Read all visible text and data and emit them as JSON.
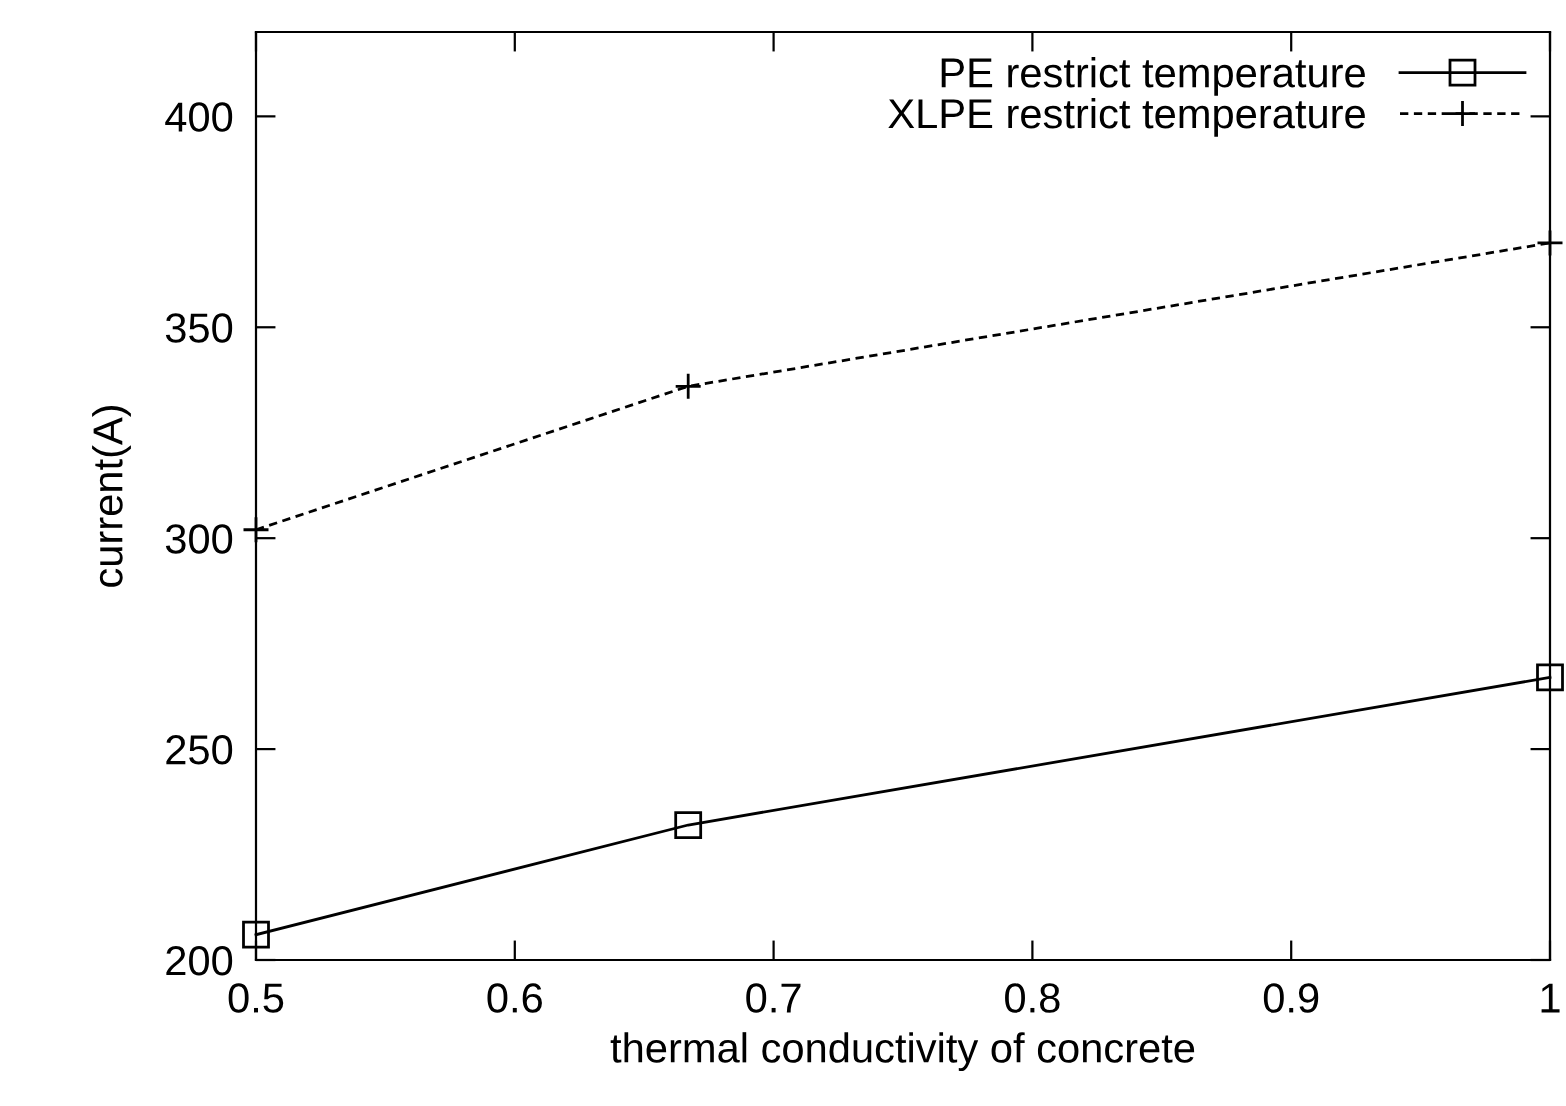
{
  "chart_data": {
    "type": "line",
    "xlabel": "thermal conductivity of concrete",
    "ylabel": "current(A)",
    "xlim": [
      0.5,
      1
    ],
    "xticks": [
      0.5,
      0.6,
      0.7,
      0.8,
      0.9,
      1
    ],
    "ylim": [
      200,
      420
    ],
    "yticks": [
      200,
      250,
      300,
      350,
      400
    ],
    "grid": false,
    "legend": "top right",
    "tick_labels": true,
    "series": [
      {
        "name": "PE restrict temperature",
        "color": "#000000",
        "x": [
          0.5,
          0.667,
          1
        ],
        "values": [
          206,
          232,
          267
        ],
        "marker": "square",
        "line_style": "solid"
      },
      {
        "name": "XLPE restrict temperature",
        "color": "#000000",
        "x": [
          0.5,
          0.667,
          1
        ],
        "values": [
          302,
          336,
          370
        ],
        "marker": "cross",
        "line_style": "dashed"
      }
    ]
  }
}
